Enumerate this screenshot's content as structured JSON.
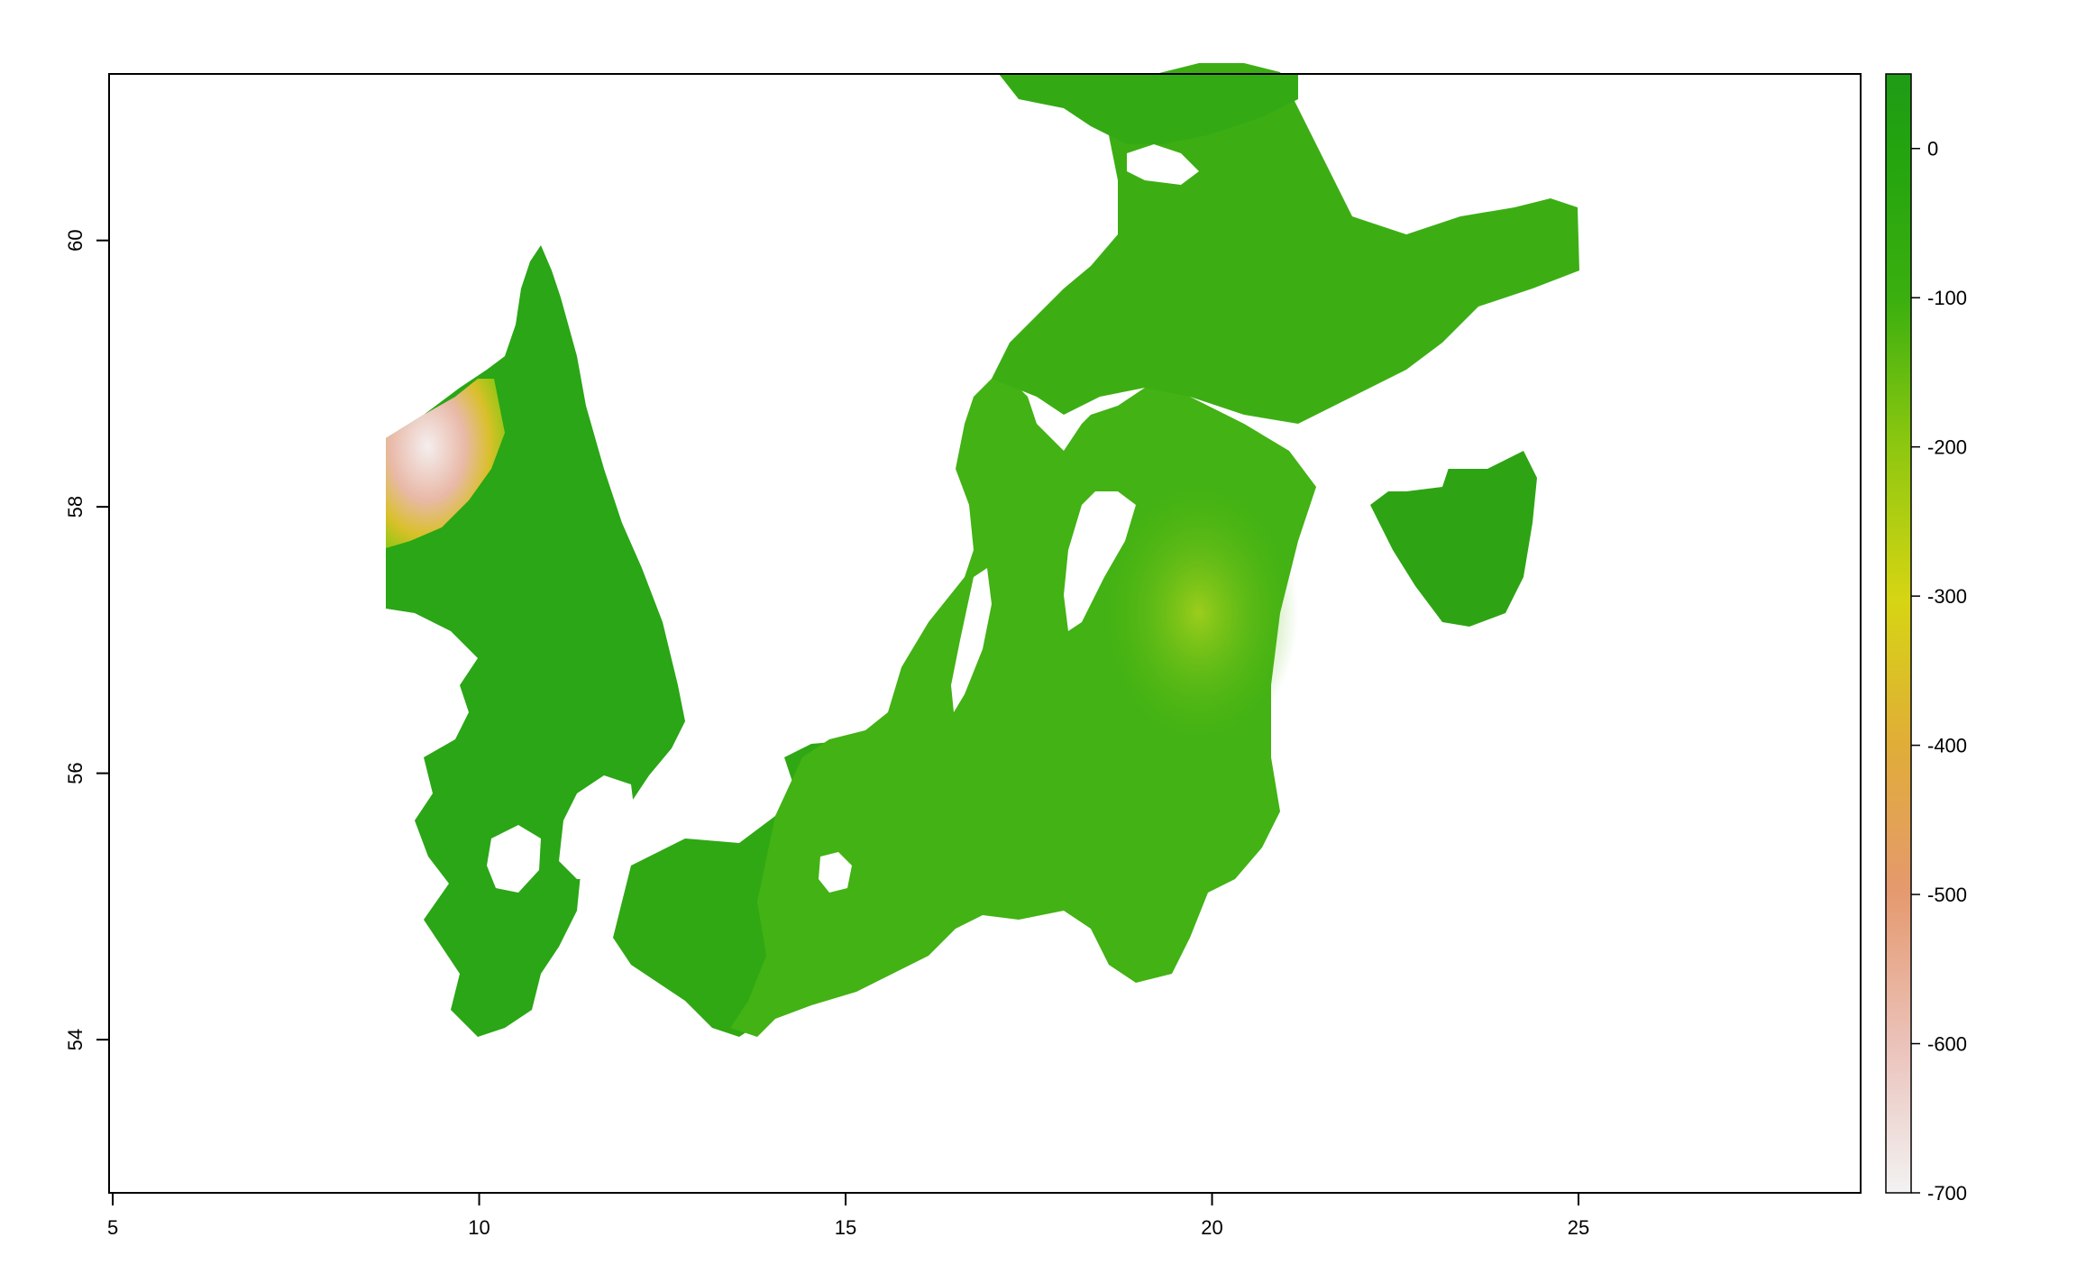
{
  "map": {
    "x_axis": {
      "range": [
        4.95,
        28.85
      ],
      "ticks": [
        5,
        10,
        15,
        20,
        25
      ]
    },
    "y_axis": {
      "range": [
        52.85,
        61.25
      ],
      "ticks": [
        54,
        56,
        58,
        60
      ]
    },
    "frame": "box",
    "background_color": "#ffffff"
  },
  "legend": {
    "type": "colorbar",
    "placement": "right",
    "range": [
      -700,
      50
    ],
    "ticks": [
      0,
      -100,
      -200,
      -300,
      -400,
      -500,
      -600,
      -700
    ],
    "tick_labels": [
      "0",
      "-100",
      "-200",
      "-300",
      "-400",
      "-500",
      "-600",
      "-700"
    ],
    "color_stops": [
      {
        "value": 50,
        "color": "#1f9b16"
      },
      {
        "value": 0,
        "color": "#24a40f"
      },
      {
        "value": -100,
        "color": "#3aaf0f"
      },
      {
        "value": -200,
        "color": "#8cc710"
      },
      {
        "value": -300,
        "color": "#d6d513"
      },
      {
        "value": -400,
        "color": "#e0ad38"
      },
      {
        "value": -500,
        "color": "#e5996e"
      },
      {
        "value": -600,
        "color": "#ebc3bb"
      },
      {
        "value": -700,
        "color": "#f2f2f2"
      }
    ]
  },
  "raster": {
    "description_colors": {
      "shallow": "#27a514",
      "mid": "#4ab615",
      "deep_basin": "#7fc41a",
      "very_deep": "#f0c8c0"
    }
  }
}
